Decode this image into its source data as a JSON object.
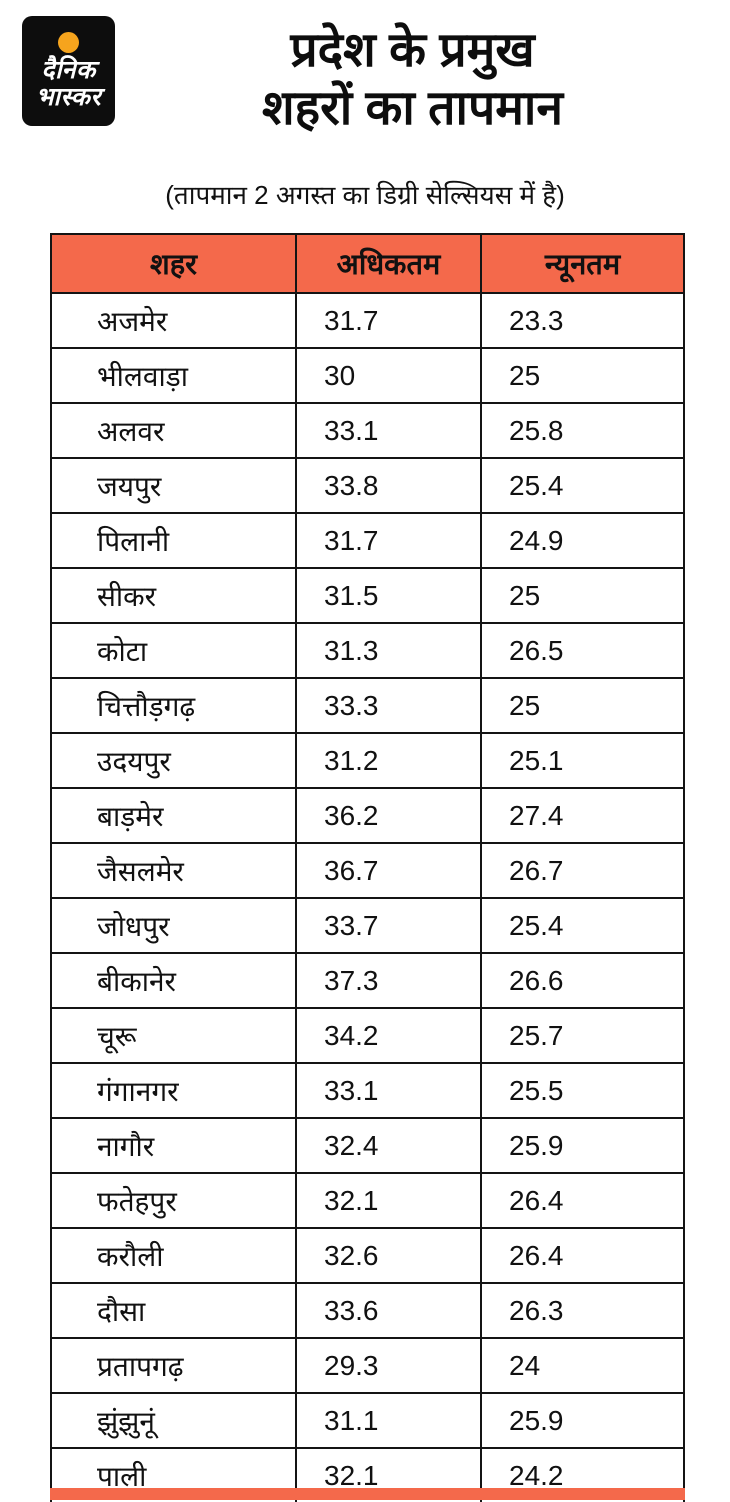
{
  "brand": {
    "logo_line1": "दैनिक",
    "logo_line2": "भास्कर"
  },
  "header": {
    "title_line1": "प्रदेश के प्रमुख",
    "title_line2": "शहरों का तापमान",
    "subtitle": "(तापमान 2 अगस्त का डिग्री सेल्सियस में है)"
  },
  "colors": {
    "accent": "#F4694B",
    "logo_circle": "#F6A41D",
    "border": "#141414"
  },
  "chart_data": {
    "type": "table",
    "title": "प्रदेश के प्रमुख शहरों का तापमान",
    "subtitle": "(तापमान 2 अगस्त का डिग्री सेल्सियस में है)",
    "columns": [
      "शहर",
      "अधिकतम",
      "न्यूनतम"
    ],
    "rows": [
      [
        "अजमेर",
        "31.7",
        "23.3"
      ],
      [
        "भीलवाड़ा",
        "30",
        "25"
      ],
      [
        "अलवर",
        "33.1",
        "25.8"
      ],
      [
        "जयपुर",
        "33.8",
        "25.4"
      ],
      [
        "पिलानी",
        "31.7",
        "24.9"
      ],
      [
        "सीकर",
        "31.5",
        "25"
      ],
      [
        "कोटा",
        "31.3",
        "26.5"
      ],
      [
        "चित्तौड़गढ़",
        "33.3",
        "25"
      ],
      [
        "उदयपुर",
        "31.2",
        "25.1"
      ],
      [
        "बाड़मेर",
        "36.2",
        "27.4"
      ],
      [
        "जैसलमेर",
        "36.7",
        "26.7"
      ],
      [
        "जोधपुर",
        "33.7",
        "25.4"
      ],
      [
        "बीकानेर",
        "37.3",
        "26.6"
      ],
      [
        "चूरू",
        "34.2",
        "25.7"
      ],
      [
        "गंगानगर",
        "33.1",
        "25.5"
      ],
      [
        "नागौर",
        "32.4",
        "25.9"
      ],
      [
        "फतेहपुर",
        "32.1",
        "26.4"
      ],
      [
        "करौली",
        "32.6",
        "26.4"
      ],
      [
        "दौसा",
        "33.6",
        "26.3"
      ],
      [
        "प्रतापगढ़",
        "29.3",
        "24"
      ],
      [
        "झुंझुनूं",
        "31.1",
        "25.9"
      ],
      [
        "पाली",
        "32.1",
        "24.2"
      ]
    ]
  }
}
